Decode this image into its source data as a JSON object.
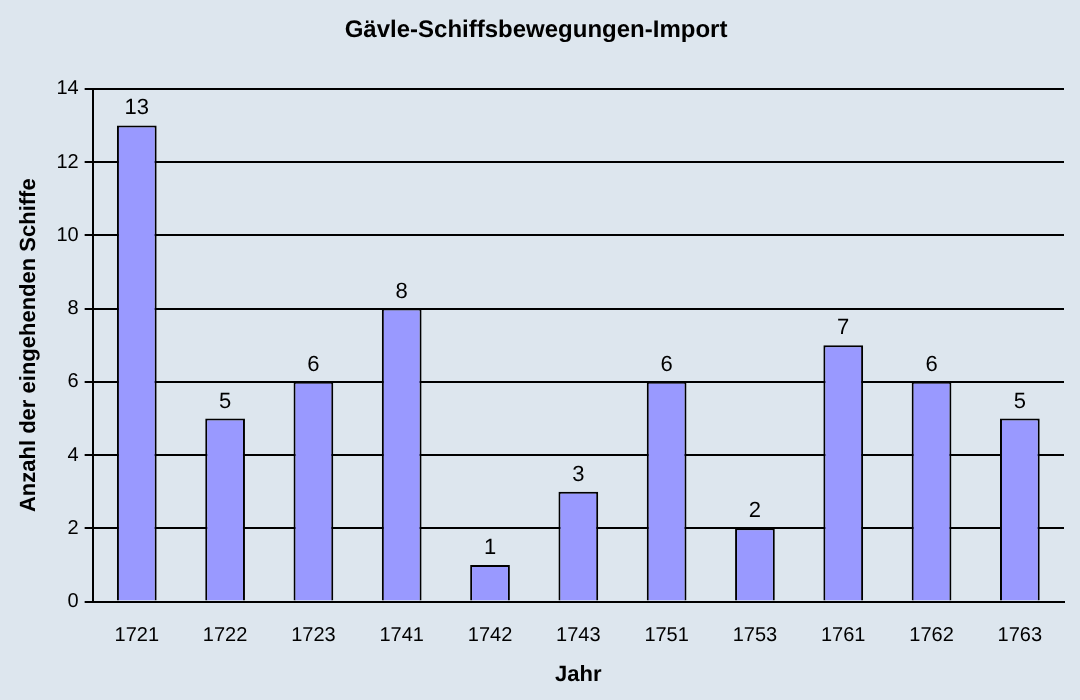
{
  "chart_data": {
    "type": "bar",
    "title": "Gävle-Schiffsbewegungen-Import",
    "xlabel": "Jahr",
    "ylabel": "Anzahl der eingehenden Schiffe",
    "categories": [
      "1721",
      "1722",
      "1723",
      "1741",
      "1742",
      "1743",
      "1751",
      "1753",
      "1761",
      "1762",
      "1763"
    ],
    "values": [
      13,
      5,
      6,
      8,
      1,
      3,
      6,
      2,
      7,
      6,
      5
    ],
    "color": "#9999ff",
    "ylim": [
      0,
      14
    ],
    "yticks": [
      0,
      2,
      4,
      6,
      8,
      10,
      12,
      14
    ],
    "grid": "y",
    "data_labels": true,
    "legend": false
  }
}
